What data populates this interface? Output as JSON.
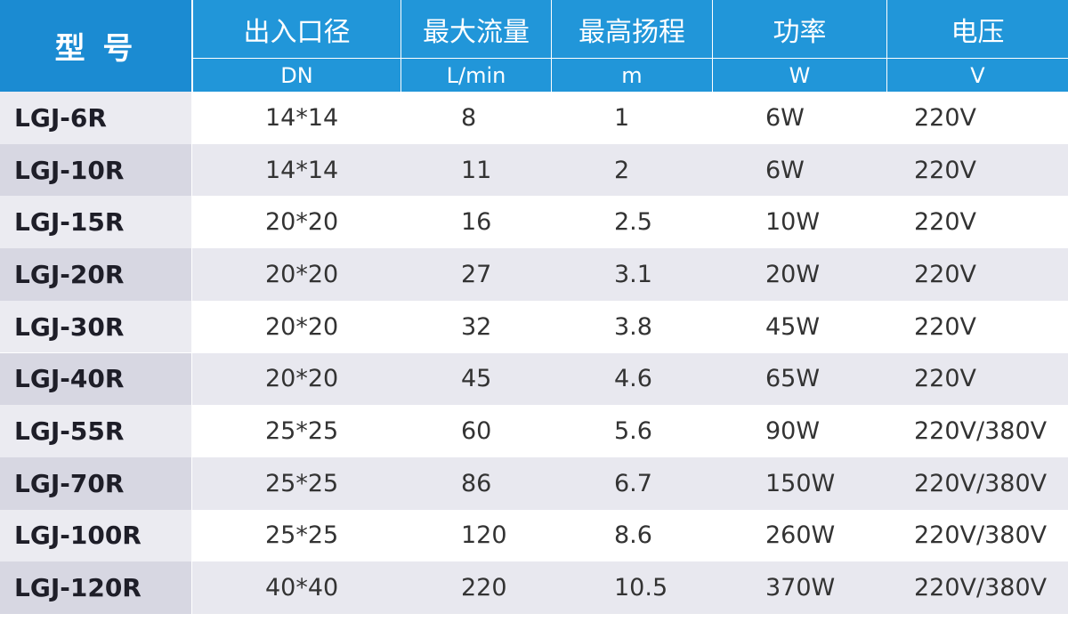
{
  "header": {
    "model": "型 号",
    "columns": [
      {
        "name": "出入口径",
        "unit": "DN"
      },
      {
        "name": "最大流量",
        "unit": "L/min"
      },
      {
        "name": "最高扬程",
        "unit": "m"
      },
      {
        "name": "功率",
        "unit": "W"
      },
      {
        "name": "电压",
        "unit": "V"
      }
    ]
  },
  "table": {
    "rows": [
      [
        "LGJ-6R",
        "14*14",
        "8",
        "1",
        "6W",
        "220V"
      ],
      [
        "LGJ-10R",
        "14*14",
        "11",
        "2",
        "6W",
        "220V"
      ],
      [
        "LGJ-15R",
        "20*20",
        "16",
        "2.5",
        "10W",
        "220V"
      ],
      [
        "LGJ-20R",
        "20*20",
        "27",
        "3.1",
        "20W",
        "220V"
      ],
      [
        "LGJ-30R",
        "20*20",
        "32",
        "3.8",
        "45W",
        "220V"
      ],
      [
        "LGJ-40R",
        "20*20",
        "45",
        "4.6",
        "65W",
        "220V"
      ],
      [
        "LGJ-55R",
        "25*25",
        "60",
        "5.6",
        "90W",
        "220V/380V"
      ],
      [
        "LGJ-70R",
        "25*25",
        "86",
        "6.7",
        "150W",
        "220V/380V"
      ],
      [
        "LGJ-100R",
        "25*25",
        "120",
        "8.6",
        "260W",
        "220V/380V"
      ],
      [
        "LGJ-120R",
        "40*40",
        "220",
        "10.5",
        "370W",
        "220V/380V"
      ]
    ]
  }
}
